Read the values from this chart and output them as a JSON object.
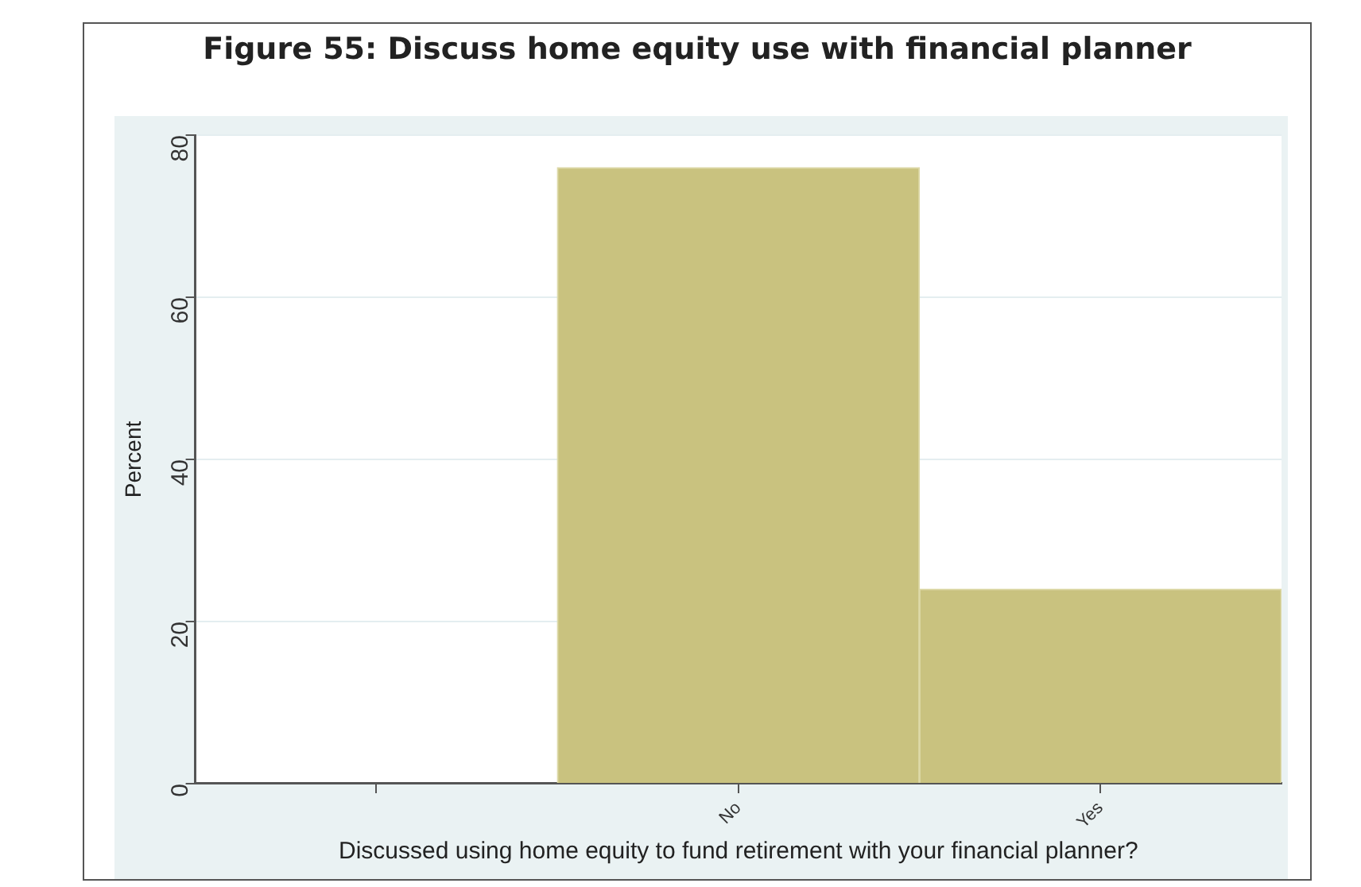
{
  "chart_data": {
    "type": "bar",
    "title": "Figure 55: Discuss home equity use with financial planner",
    "xlabel": "Discussed using home equity to fund retirement with your financial planner?",
    "ylabel": "Percent",
    "categories": [
      null,
      "No",
      "Yes"
    ],
    "values": [
      null,
      76,
      24
    ],
    "color": "#c9c27f",
    "ylim": [
      0,
      80
    ],
    "yticks": [
      0,
      20,
      40,
      60,
      80
    ],
    "grid": "y",
    "legend": false
  }
}
